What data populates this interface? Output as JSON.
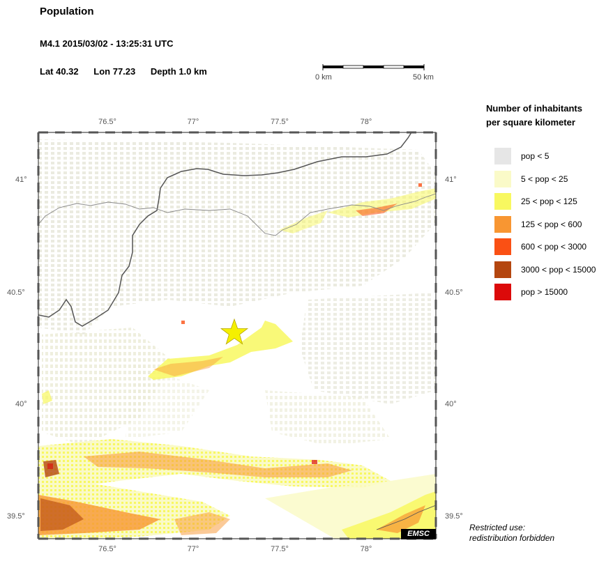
{
  "header": {
    "title": "Population",
    "event": "M4.1  2015/03/02 - 13:25:31 UTC",
    "lat": "Lat 40.32",
    "lon": "Lon  77.23",
    "depth": "Depth  1.0 km"
  },
  "scale": {
    "start_label": "0 km",
    "end_label": "50 km"
  },
  "map": {
    "lon_ticks": [
      "76.5°",
      "77°",
      "77.5°",
      "78°"
    ],
    "lat_ticks": [
      "41°",
      "40.5°",
      "40°",
      "39.5°"
    ],
    "epicenter": {
      "lat": 40.32,
      "lon": 77.23,
      "color": "#f5f000"
    },
    "badge": "EMSC",
    "disclaimer_line1": "Restricted use:",
    "disclaimer_line2": "redistribution forbidden"
  },
  "legend": {
    "title_line1": "Number of inhabitants",
    "title_line2": "per square kilometer",
    "items": [
      {
        "label": "pop < 5",
        "color": "#e6e6e6"
      },
      {
        "label": "5 < pop < 25",
        "color": "#fafac8"
      },
      {
        "label": "25 < pop < 125",
        "color": "#f8f860"
      },
      {
        "label": "125 < pop < 600",
        "color": "#f89632"
      },
      {
        "label": "600 < pop < 3000",
        "color": "#fa5014"
      },
      {
        "label": "3000 < pop < 15000",
        "color": "#b4460f"
      },
      {
        "label": "pop > 15000",
        "color": "#dc0a0a"
      }
    ]
  }
}
